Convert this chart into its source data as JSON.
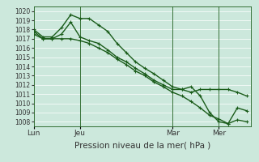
{
  "xlabel": "Pression niveau de la mer( hPa )",
  "ylim": [
    1007.5,
    1020.5
  ],
  "yticks": [
    1008,
    1009,
    1010,
    1011,
    1012,
    1013,
    1014,
    1015,
    1016,
    1017,
    1018,
    1019,
    1020
  ],
  "xtick_labels": [
    "Lun",
    "Jeu",
    "Mar",
    "Mer"
  ],
  "xtick_positions": [
    0,
    1,
    3,
    4
  ],
  "bg_color": "#cce8dc",
  "line_color": "#1a5c1a",
  "marker": "+",
  "line_width": 1.0,
  "xlim": [
    0,
    4.7
  ],
  "series1_x": [
    0,
    0.2,
    0.4,
    0.6,
    0.8,
    1.0,
    1.2,
    1.4,
    1.6,
    1.8,
    2.0,
    2.2,
    2.4,
    2.6,
    2.8,
    3.0,
    3.2,
    3.4,
    3.6,
    3.8,
    4.0,
    4.2,
    4.4,
    4.6
  ],
  "series1_y": [
    1018,
    1017.2,
    1017.2,
    1018.2,
    1019.6,
    1019.2,
    1019.2,
    1018.5,
    1017.8,
    1016.5,
    1015.5,
    1014.5,
    1013.8,
    1013.2,
    1012.5,
    1011.8,
    1011.5,
    1011.8,
    1010.8,
    1009.0,
    1008.0,
    1007.8,
    1009.5,
    1009.2
  ],
  "series2_x": [
    0,
    0.2,
    0.4,
    0.6,
    0.8,
    1.0,
    1.2,
    1.4,
    1.6,
    1.8,
    2.0,
    2.2,
    2.4,
    2.6,
    2.8,
    3.0,
    3.2,
    3.4,
    3.6,
    3.8,
    4.0,
    4.2,
    4.4,
    4.6
  ],
  "series2_y": [
    1017.5,
    1017.0,
    1017.0,
    1017.5,
    1018.8,
    1017.2,
    1016.8,
    1016.5,
    1015.8,
    1015.0,
    1014.5,
    1013.8,
    1013.2,
    1012.5,
    1012.0,
    1011.5,
    1011.5,
    1011.2,
    1011.5,
    1011.5,
    1011.5,
    1011.5,
    1011.2,
    1010.8
  ],
  "series3_x": [
    0,
    0.2,
    0.4,
    0.6,
    0.8,
    1.0,
    1.2,
    1.4,
    1.6,
    1.8,
    2.0,
    2.2,
    2.4,
    2.6,
    2.8,
    3.0,
    3.2,
    3.4,
    3.6,
    3.8,
    4.0,
    4.2,
    4.4,
    4.6
  ],
  "series3_y": [
    1017.8,
    1017.0,
    1017.0,
    1017.0,
    1017.0,
    1016.8,
    1016.5,
    1016.0,
    1015.5,
    1014.8,
    1014.2,
    1013.5,
    1013.0,
    1012.3,
    1011.8,
    1011.2,
    1010.8,
    1010.2,
    1009.5,
    1008.7,
    1008.3,
    1007.8,
    1008.2,
    1008.0
  ],
  "vline_positions": [
    1.0,
    3.0,
    4.0
  ],
  "font_size_xlabel": 7.5,
  "font_size_ytick": 5.5,
  "font_size_xtick": 6.5,
  "grid_color": "#ffffff",
  "spine_color": "#1a5c1a"
}
